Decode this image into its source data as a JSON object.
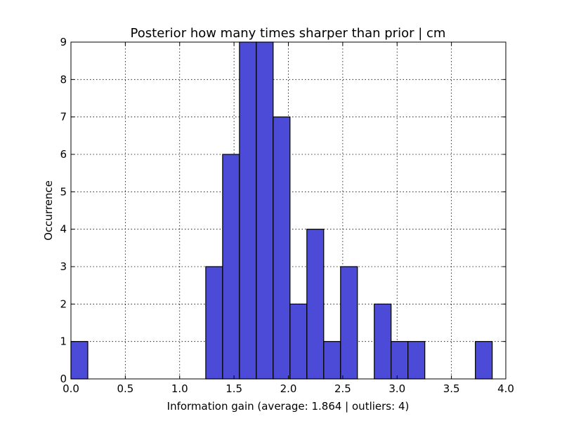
{
  "chart_data": {
    "type": "bar",
    "title": "Posterior how many times sharper than prior | cm",
    "xlabel": "Information gain (average: 1.864 | outliers: 4)",
    "ylabel": "Occurrence",
    "xlim": [
      0.0,
      4.0
    ],
    "ylim": [
      0,
      9
    ],
    "xticks": [
      "0.0",
      "0.5",
      "1.0",
      "1.5",
      "2.0",
      "2.5",
      "3.0",
      "3.5",
      "4.0"
    ],
    "yticks": [
      "0",
      "1",
      "2",
      "3",
      "4",
      "5",
      "6",
      "7",
      "8",
      "9"
    ],
    "grid": true,
    "bar_color": "#4b4bd8",
    "bin_edges": [
      0.0,
      0.155,
      0.31,
      0.465,
      0.62,
      0.775,
      0.93,
      1.085,
      1.24,
      1.395,
      1.55,
      1.705,
      1.86,
      2.015,
      2.17,
      2.325,
      2.48,
      2.635,
      2.79,
      2.945,
      3.1,
      3.255,
      3.41,
      3.565,
      3.72,
      3.875
    ],
    "values": [
      1,
      0,
      0,
      0,
      0,
      0,
      0,
      0,
      3,
      6,
      9,
      9,
      7,
      2,
      4,
      1,
      3,
      0,
      2,
      1,
      1,
      0,
      0,
      0,
      1
    ]
  }
}
